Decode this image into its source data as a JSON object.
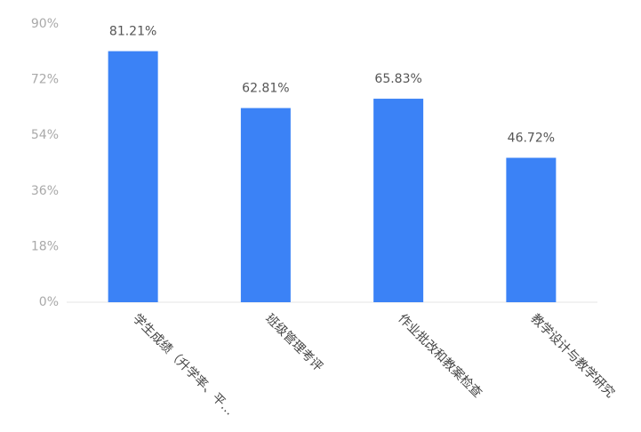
{
  "chart_data": {
    "type": "bar",
    "categories": [
      "学生成绩（升学率、平…",
      "班级管理考评",
      "作业批改和教案检查",
      "教学设计与教学研究"
    ],
    "values": [
      81.21,
      62.81,
      65.83,
      46.72
    ],
    "value_labels": [
      "81.21%",
      "62.81%",
      "65.83%",
      "46.72%"
    ],
    "color": "#3b82f6",
    "ylim": [
      0,
      90
    ],
    "yticks": [
      {
        "value": 0,
        "label": "0%"
      },
      {
        "value": 18,
        "label": "18%"
      },
      {
        "value": 36,
        "label": "36%"
      },
      {
        "value": 54,
        "label": "54%"
      },
      {
        "value": 72,
        "label": "72%"
      },
      {
        "value": 90,
        "label": "90%"
      }
    ]
  }
}
